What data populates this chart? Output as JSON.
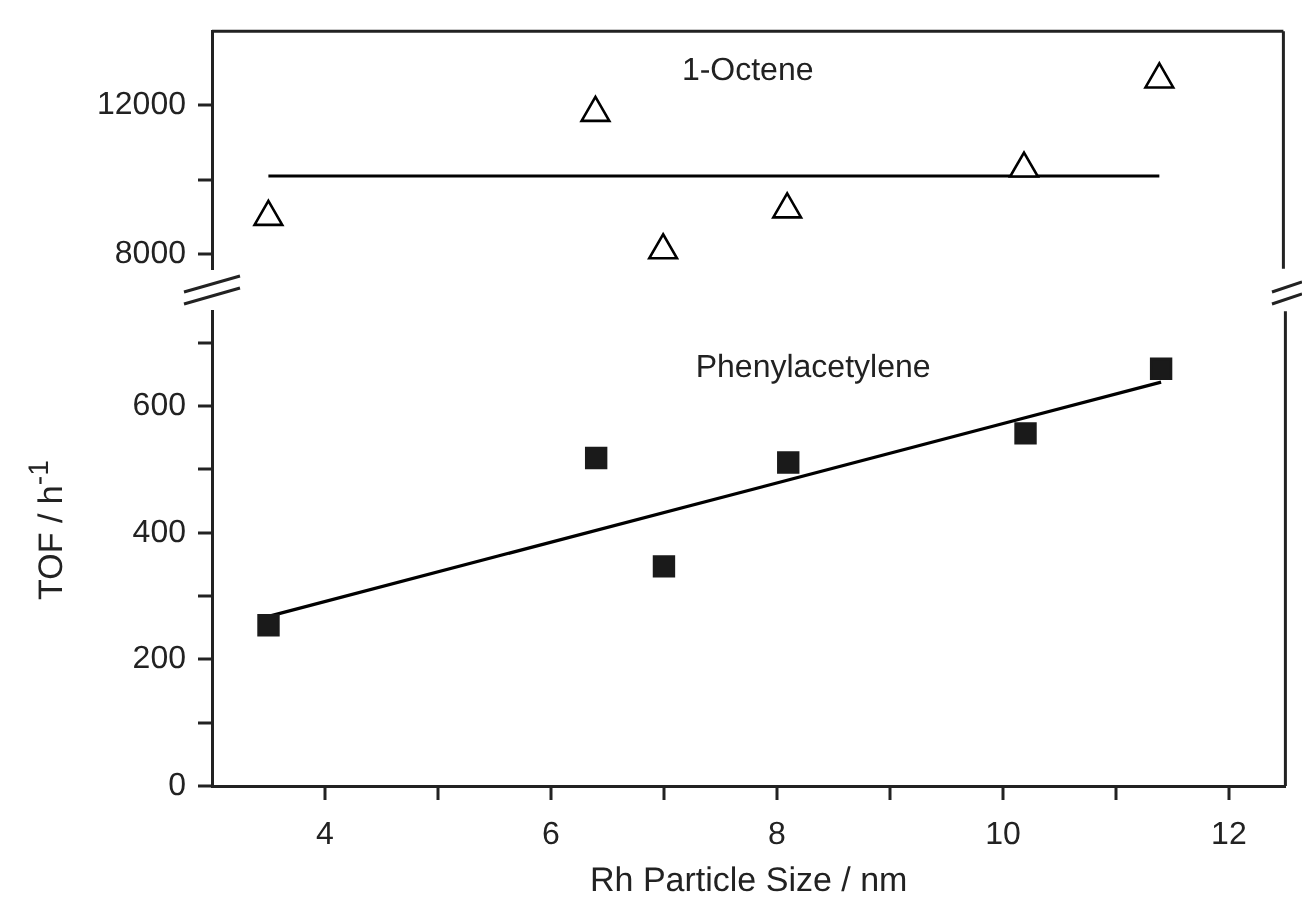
{
  "chart_data": [
    {
      "type": "scatter",
      "xlim": [
        3,
        12.5
      ],
      "ylim": [
        7600,
        14000
      ],
      "yticks": [
        8000,
        {
          "value": 10000,
          "label": null
        },
        12000
      ],
      "tick_labels": "y",
      "series": [
        {
          "name": "1-Octene",
          "color": "#000000",
          "marker": "triangle",
          "x": [
            3.5,
            6.4,
            7.0,
            8.1,
            10.2,
            11.4
          ],
          "values": [
            9000,
            11800,
            8100,
            9200,
            10300,
            12700
          ]
        },
        {
          "type": "line",
          "color": "#000000",
          "marker": "none",
          "x": [
            3.5,
            11.4
          ],
          "values": [
            10100,
            10100
          ]
        }
      ]
    },
    {
      "type": "scatter",
      "xlim": [
        3,
        12.5
      ],
      "xticks": [
        4,
        {
          "value": 5,
          "label": null
        },
        6,
        {
          "value": 7,
          "label": null
        },
        8,
        {
          "value": 9,
          "label": null
        },
        10,
        {
          "value": 11,
          "label": null
        },
        12
      ],
      "ylim": [
        0,
        750
      ],
      "yticks": [
        0,
        {
          "value": 100,
          "label": null
        },
        200,
        {
          "value": 300,
          "label": null
        },
        400,
        {
          "value": 500,
          "label": null
        },
        600,
        {
          "value": 700,
          "label": null
        }
      ],
      "xlabel": "Rh Particle Size / nm",
      "ylabel": "TOF / h$^{-1}$",
      "series": [
        {
          "name": "Phenylacetylene",
          "color": "#1a1a1a",
          "marker": "square",
          "x": [
            3.5,
            6.4,
            7.0,
            8.1,
            10.2,
            11.4
          ],
          "values": [
            254,
            518,
            347,
            511,
            557,
            659
          ]
        },
        {
          "type": "line",
          "color": "#000000",
          "marker": "none",
          "x": [
            3.5,
            11.4
          ],
          "values": [
            268,
            638
          ]
        }
      ]
    }
  ]
}
